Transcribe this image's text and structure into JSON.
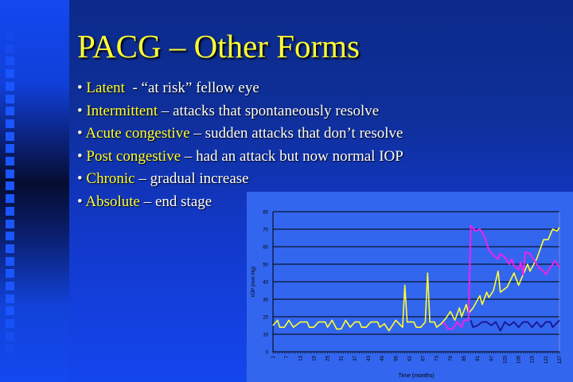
{
  "slide": {
    "title": "PACG –  Other Forms",
    "bullets": [
      {
        "bullet": "•",
        "term": "Latent",
        "rest": "  - “at risk” fellow eye"
      },
      {
        "bullet": "•",
        "term": "Intermittent",
        "rest": " – attacks that spontaneously resolve"
      },
      {
        "bullet": "•",
        "term": "Acute congestive",
        "rest": " – sudden attacks that don’t resolve"
      },
      {
        "bullet": "•",
        "term": "Post congestive",
        "rest": " – had an attack but now normal IOP"
      },
      {
        "bullet": "•",
        "term": "Chronic",
        "rest": " – gradual increase"
      },
      {
        "bullet": "•",
        "term": "Absolute",
        "rest": " – end stage"
      }
    ],
    "colors": {
      "title": "#ffff33",
      "term": "#ffff33",
      "text": "#ffffff",
      "chart_bg": "#3366ee"
    }
  },
  "chart_data": {
    "type": "line",
    "title": "",
    "xlabel": "Time (months)",
    "ylabel": "IOP (mm Hg)",
    "xlim": [
      1,
      127
    ],
    "ylim": [
      0,
      80
    ],
    "yticks": [
      0,
      10,
      20,
      30,
      40,
      50,
      60,
      70,
      80
    ],
    "xticks": [
      1,
      7,
      13,
      19,
      25,
      31,
      37,
      43,
      49,
      55,
      61,
      67,
      73,
      79,
      85,
      91,
      97,
      103,
      109,
      115,
      121,
      127
    ],
    "grid": "horizontal",
    "legend": "none",
    "series": [
      {
        "color": "#ffff33",
        "points": [
          [
            1,
            15
          ],
          [
            3,
            18
          ],
          [
            4,
            14
          ],
          [
            6,
            14
          ],
          [
            8,
            18
          ],
          [
            10,
            14
          ],
          [
            13,
            17
          ],
          [
            16,
            17
          ],
          [
            17,
            14
          ],
          [
            19,
            14
          ],
          [
            21,
            17
          ],
          [
            24,
            17
          ],
          [
            25,
            14
          ],
          [
            27,
            18
          ],
          [
            29,
            13
          ],
          [
            31,
            13
          ],
          [
            33,
            18
          ],
          [
            35,
            14
          ],
          [
            37,
            17
          ],
          [
            39,
            17
          ],
          [
            40,
            14
          ],
          [
            42,
            14
          ],
          [
            44,
            17
          ],
          [
            47,
            17
          ],
          [
            48,
            14
          ],
          [
            50,
            16
          ],
          [
            52,
            12
          ],
          [
            55,
            18
          ],
          [
            58,
            14
          ],
          [
            59,
            38
          ],
          [
            60,
            17
          ],
          [
            63,
            17
          ],
          [
            64,
            14
          ],
          [
            66,
            14
          ],
          [
            68,
            17
          ],
          [
            69,
            45
          ],
          [
            70,
            17
          ],
          [
            72,
            17
          ],
          [
            73,
            14
          ],
          [
            75,
            16
          ],
          [
            77,
            19
          ],
          [
            79,
            23
          ],
          [
            81,
            18
          ],
          [
            83,
            25
          ],
          [
            84,
            20
          ],
          [
            86,
            27
          ],
          [
            87,
            22
          ],
          [
            89,
            25
          ],
          [
            92,
            32
          ],
          [
            93,
            27
          ],
          [
            95,
            34
          ],
          [
            96,
            31
          ],
          [
            98,
            35
          ],
          [
            100,
            46
          ],
          [
            101,
            34
          ],
          [
            104,
            37
          ],
          [
            107,
            45
          ],
          [
            109,
            38
          ],
          [
            111,
            44
          ],
          [
            113,
            50
          ],
          [
            114,
            46
          ],
          [
            117,
            53
          ],
          [
            120,
            64
          ],
          [
            122,
            64
          ],
          [
            124,
            70
          ],
          [
            126,
            69
          ],
          [
            127,
            71
          ]
        ]
      },
      {
        "color": "#ee22ee",
        "points": [
          [
            76,
            17
          ],
          [
            78,
            13
          ],
          [
            80,
            13
          ],
          [
            82,
            17
          ],
          [
            84,
            14
          ],
          [
            85,
            18
          ],
          [
            87,
            18
          ],
          [
            88,
            72
          ],
          [
            90,
            69
          ],
          [
            92,
            70
          ],
          [
            94,
            66
          ],
          [
            96,
            58
          ],
          [
            98,
            55
          ],
          [
            100,
            53
          ],
          [
            101,
            56
          ],
          [
            103,
            54
          ],
          [
            105,
            50
          ],
          [
            106,
            53
          ],
          [
            107,
            49
          ],
          [
            109,
            47
          ],
          [
            110,
            51
          ],
          [
            111,
            44
          ],
          [
            112,
            57
          ],
          [
            114,
            56
          ],
          [
            116,
            52
          ],
          [
            118,
            48
          ],
          [
            120,
            46
          ],
          [
            121,
            44
          ],
          [
            123,
            48
          ],
          [
            125,
            52
          ],
          [
            127,
            48
          ]
        ]
      },
      {
        "color": "#1a1a99",
        "points": [
          [
            88,
            18
          ],
          [
            89,
            14
          ],
          [
            91,
            15
          ],
          [
            93,
            17
          ],
          [
            95,
            17
          ],
          [
            97,
            15
          ],
          [
            99,
            17
          ],
          [
            101,
            12
          ],
          [
            103,
            17
          ],
          [
            105,
            15
          ],
          [
            107,
            17
          ],
          [
            109,
            14
          ],
          [
            111,
            17
          ],
          [
            113,
            17
          ],
          [
            115,
            14
          ],
          [
            117,
            17
          ],
          [
            119,
            14
          ],
          [
            121,
            17
          ],
          [
            123,
            17
          ],
          [
            124,
            14
          ],
          [
            127,
            18
          ]
        ]
      }
    ]
  }
}
